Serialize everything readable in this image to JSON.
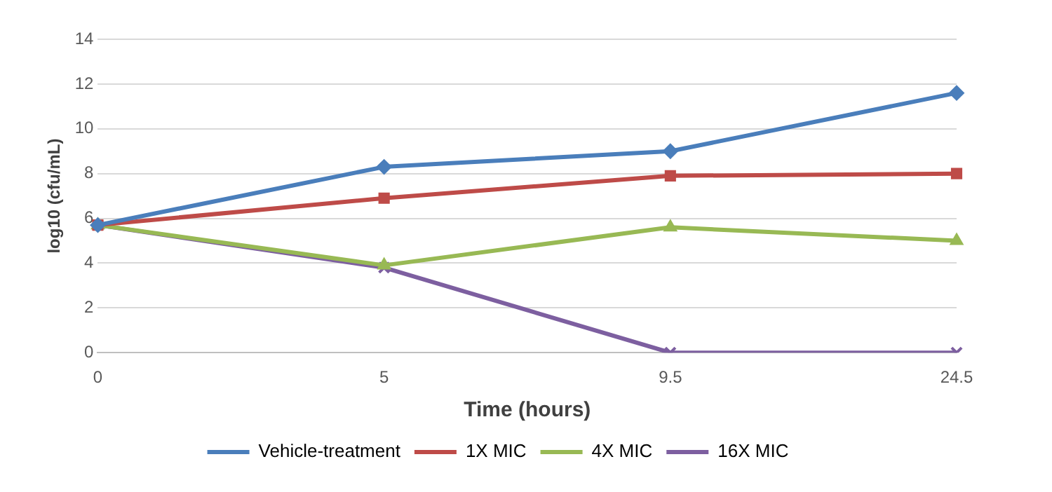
{
  "chart_data": {
    "type": "line",
    "xlabel": "Time (hours)",
    "ylabel": "log10 (cfu/mL)",
    "categories": [
      "0",
      "5",
      "9.5",
      "24.5"
    ],
    "series": [
      {
        "name": "Vehicle-treatment",
        "color": "#4a7ebb",
        "marker": "diamond",
        "values": [
          5.7,
          8.3,
          9.0,
          11.6
        ]
      },
      {
        "name": "1X MIC",
        "color": "#be4b48",
        "marker": "square",
        "values": [
          5.7,
          6.9,
          7.9,
          8.0
        ]
      },
      {
        "name": "4X MIC",
        "color": "#98b954",
        "marker": "triangle",
        "values": [
          5.7,
          3.9,
          5.6,
          5.0
        ]
      },
      {
        "name": "16X MIC",
        "color": "#7d5fa0",
        "marker": "cross",
        "values": [
          5.7,
          3.8,
          0,
          0
        ]
      }
    ],
    "ylim": [
      0,
      14
    ],
    "yticks": [
      0,
      2,
      4,
      6,
      8,
      10,
      12,
      14
    ],
    "grid": "y",
    "legend": "bottom"
  }
}
